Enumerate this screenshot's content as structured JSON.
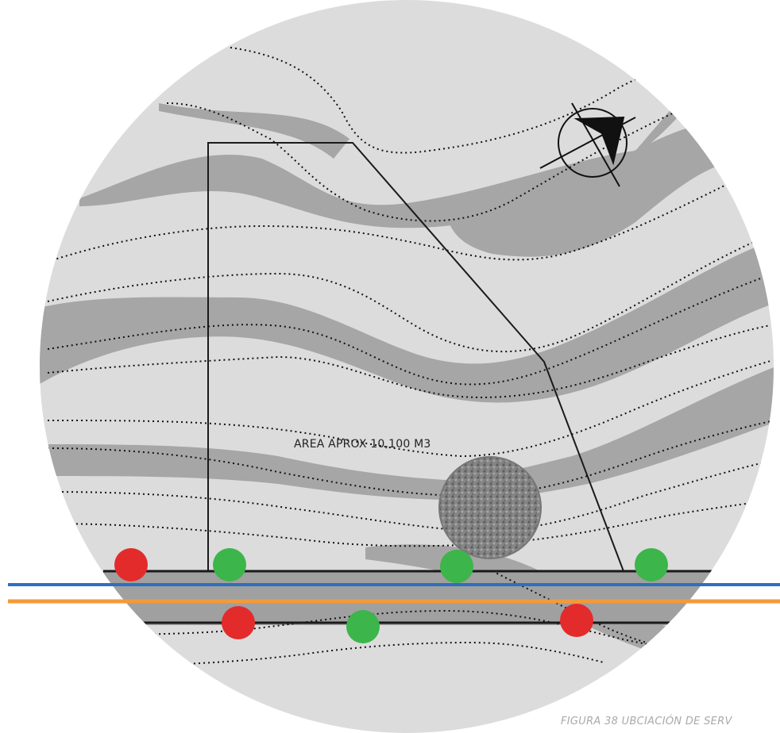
{
  "map": {
    "area_label": "AREA APROX 10,100 M3",
    "caption": "FIGURA 38 UBCIACIÓN DE SERV"
  },
  "legend_colors": {
    "background": "#dcdcdc",
    "terrain_band": "#a6a6a6",
    "road_band": "#a0a0a0",
    "blue_line": "#2e6fbd",
    "orange_line": "#f39a3a",
    "red_marker": "#e32b2b",
    "green_marker": "#3cb54a"
  },
  "markers": [
    {
      "color": "red"
    },
    {
      "color": "green"
    },
    {
      "color": "green"
    },
    {
      "color": "green"
    },
    {
      "color": "red"
    },
    {
      "color": "green"
    },
    {
      "color": "red"
    }
  ],
  "icons": {
    "north_arrow": "compass-north-arrow-icon",
    "tree": "tree-canopy-icon"
  }
}
